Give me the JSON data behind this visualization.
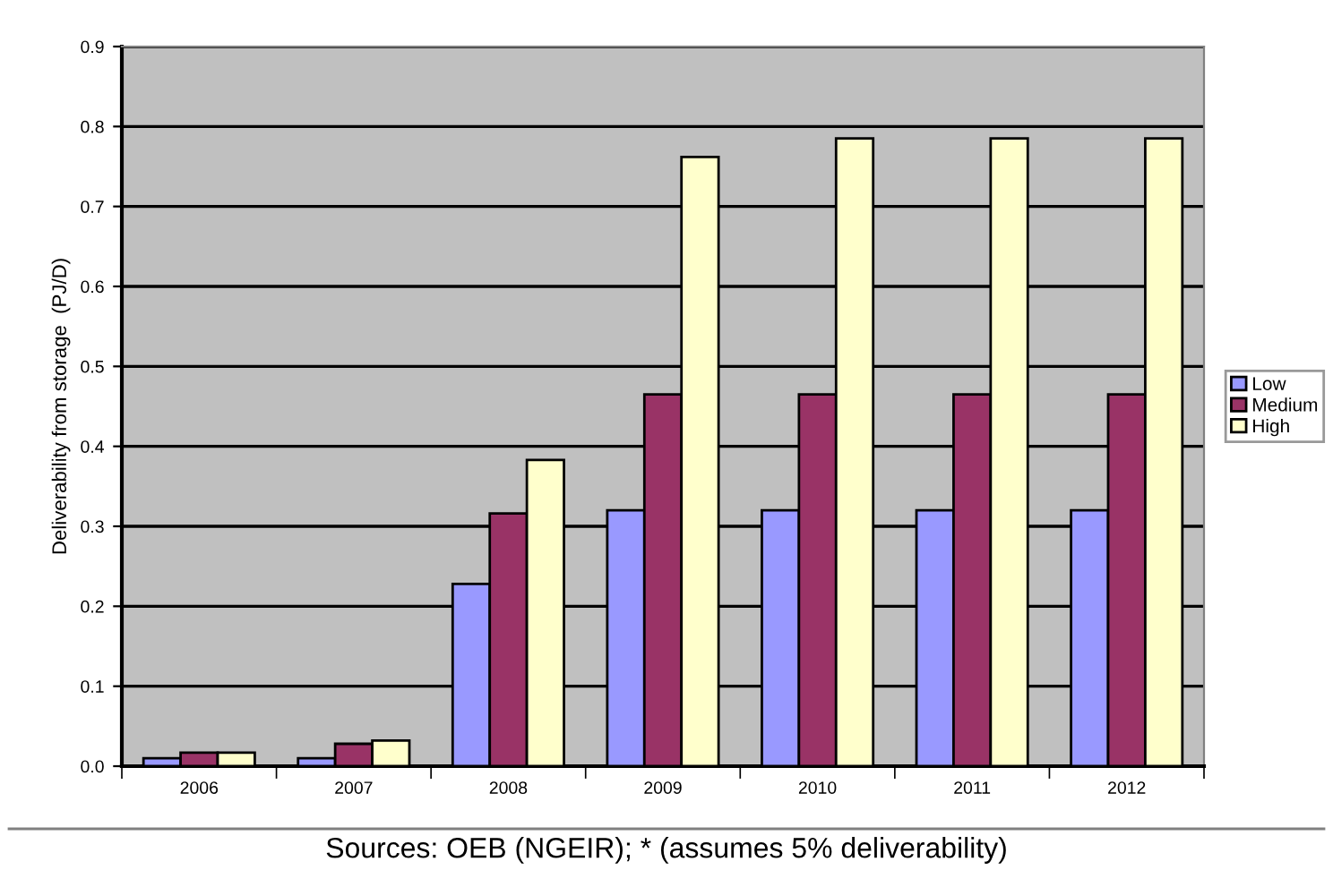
{
  "chart_data": {
    "type": "bar",
    "ylabel": "Deliverability from storage  (PJ/D)",
    "categories": [
      "2006",
      "2007",
      "2008",
      "2009",
      "2010",
      "2011",
      "2012"
    ],
    "series": [
      {
        "name": "Low",
        "color": "#9999ff",
        "values": [
          0.01,
          0.01,
          0.228,
          0.32,
          0.32,
          0.32,
          0.32
        ]
      },
      {
        "name": "Medium",
        "color": "#993366",
        "values": [
          0.017,
          0.028,
          0.316,
          0.465,
          0.465,
          0.465,
          0.465
        ]
      },
      {
        "name": "High",
        "color": "#ffffcc",
        "values": [
          0.017,
          0.032,
          0.383,
          0.762,
          0.785,
          0.785,
          0.785
        ]
      }
    ],
    "ylim": [
      0,
      0.9
    ],
    "yticks": [
      {
        "value": 0,
        "label": "0.0"
      },
      0.1,
      0.2,
      0.3,
      0.4,
      0.5,
      0.6,
      0.7,
      0.8,
      0.9
    ],
    "grid": "y",
    "legend": "right",
    "annotations": [
      "Sources: OEB (NGEIR); * (assumes 5% deliverability)"
    ]
  }
}
